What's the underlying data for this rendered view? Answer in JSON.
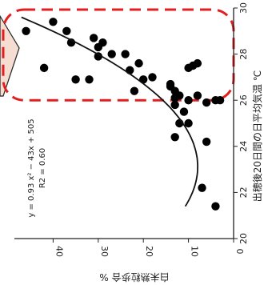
{
  "chart_data": {
    "type": "scatter",
    "xlabel": "出穂後20日間の日平均気温 ℃",
    "ylabel": "白未熟粒歩合 %",
    "xlim": [
      20,
      30
    ],
    "ylim": [
      0,
      50
    ],
    "x_ticks": [
      "20",
      "22",
      "24",
      "26",
      "28",
      "30"
    ],
    "y_ticks": [
      "0",
      "10",
      "20",
      "30",
      "40"
    ],
    "points": [
      {
        "x": 29.0,
        "y": 46
      },
      {
        "x": 27.4,
        "y": 42
      },
      {
        "x": 29.4,
        "y": 40
      },
      {
        "x": 29.0,
        "y": 37
      },
      {
        "x": 28.5,
        "y": 36
      },
      {
        "x": 26.9,
        "y": 35
      },
      {
        "x": 26.9,
        "y": 32
      },
      {
        "x": 28.7,
        "y": 31
      },
      {
        "x": 28.5,
        "y": 29
      },
      {
        "x": 28.3,
        "y": 30
      },
      {
        "x": 27.9,
        "y": 30
      },
      {
        "x": 28.0,
        "y": 27
      },
      {
        "x": 28.0,
        "y": 24
      },
      {
        "x": 27.3,
        "y": 23
      },
      {
        "x": 26.4,
        "y": 22
      },
      {
        "x": 27.6,
        "y": 21
      },
      {
        "x": 26.9,
        "y": 20
      },
      {
        "x": 27.0,
        "y": 18
      },
      {
        "x": 26.7,
        "y": 14
      },
      {
        "x": 26.6,
        "y": 14
      },
      {
        "x": 26.4,
        "y": 13
      },
      {
        "x": 26.1,
        "y": 13
      },
      {
        "x": 25.8,
        "y": 13
      },
      {
        "x": 26.2,
        "y": 12
      },
      {
        "x": 26.0,
        "y": 10
      },
      {
        "x": 27.4,
        "y": 10
      },
      {
        "x": 27.5,
        "y": 9
      },
      {
        "x": 27.6,
        "y": 8
      },
      {
        "x": 26.2,
        "y": 8
      },
      {
        "x": 25.9,
        "y": 6
      },
      {
        "x": 25.0,
        "y": 12
      },
      {
        "x": 25.0,
        "y": 10
      },
      {
        "x": 24.4,
        "y": 13
      },
      {
        "x": 24.2,
        "y": 6
      },
      {
        "x": 22.2,
        "y": 7
      },
      {
        "x": 26.0,
        "y": 4
      },
      {
        "x": 26.0,
        "y": 3
      },
      {
        "x": 21.4,
        "y": 4
      },
      {
        "x": 25.5,
        "y": 11
      }
    ],
    "trendline_label": "y = 0.93 x² − 43x + 505",
    "r2_label": "R2 = 0.60",
    "highlight_region": {
      "x_range": [
        26,
        30
      ],
      "style": "dashed",
      "color": "#e02020"
    },
    "axis_color": "#222222",
    "marker_color": "#000000"
  }
}
